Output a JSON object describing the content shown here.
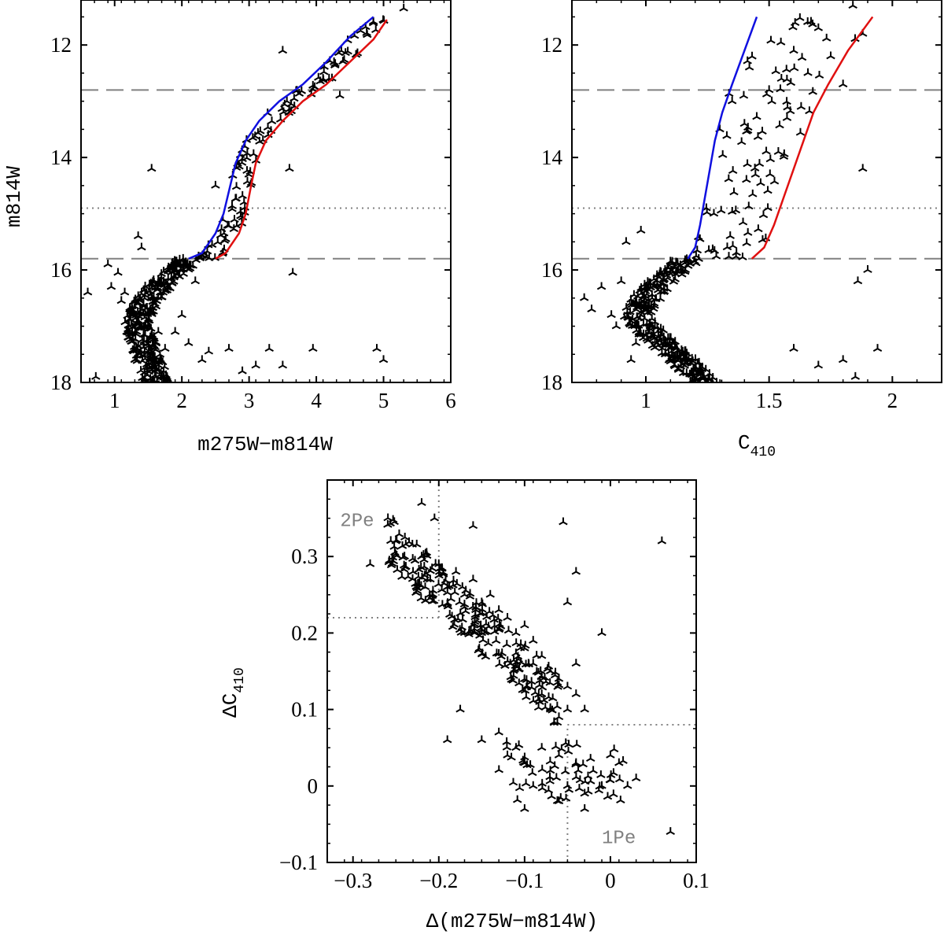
{
  "chart_data": [
    {
      "id": "panel-a",
      "type": "scatter",
      "xlabel": "m275W−m814W",
      "ylabel": "m814W",
      "xlim": [
        0.5,
        6
      ],
      "ylim": [
        18,
        11.2
      ],
      "y_inverted": true,
      "x_ticks": [
        1,
        2,
        3,
        4,
        5,
        6
      ],
      "x_tick_labels": [
        "1",
        "2",
        "3",
        "4",
        "5",
        "6"
      ],
      "y_ticks": [
        12,
        14,
        16,
        18
      ],
      "y_tick_labels": [
        "12",
        "14",
        "16",
        "18"
      ],
      "hlines": [
        {
          "y": 12.8,
          "style": "dashed"
        },
        {
          "y": 14.9,
          "style": "dotted"
        },
        {
          "y": 15.8,
          "style": "dashed"
        }
      ],
      "series": [
        {
          "name": "blue fiducial",
          "color": "#1010e0",
          "style": "line",
          "points": [
            [
              2.1,
              15.8
            ],
            [
              2.3,
              15.7
            ],
            [
              2.5,
              15.35
            ],
            [
              2.62,
              15.0
            ],
            [
              2.72,
              14.5
            ],
            [
              2.8,
              14.1
            ],
            [
              2.95,
              13.7
            ],
            [
              3.15,
              13.35
            ],
            [
              3.45,
              13.0
            ],
            [
              3.8,
              12.7
            ],
            [
              4.15,
              12.3
            ],
            [
              4.5,
              11.85
            ],
            [
              4.85,
              11.5
            ]
          ]
        },
        {
          "name": "red fiducial",
          "color": "#e01010",
          "style": "line",
          "points": [
            [
              2.5,
              15.8
            ],
            [
              2.65,
              15.7
            ],
            [
              2.85,
              15.35
            ],
            [
              2.95,
              15.0
            ],
            [
              3.03,
              14.5
            ],
            [
              3.1,
              14.1
            ],
            [
              3.25,
              13.7
            ],
            [
              3.5,
              13.35
            ],
            [
              3.8,
              13.0
            ],
            [
              4.15,
              12.7
            ],
            [
              4.5,
              12.3
            ],
            [
              4.85,
              11.9
            ],
            [
              5.05,
              11.55
            ]
          ]
        },
        {
          "name": "stars",
          "color": "#000000",
          "style": "scatter",
          "points": [
            [
              0.6,
              16.4
            ],
            [
              0.63,
              18.0
            ],
            [
              0.72,
              17.9
            ],
            [
              0.9,
              15.9
            ],
            [
              0.95,
              16.3
            ],
            [
              1.05,
              16.05
            ],
            [
              1.1,
              16.55
            ],
            [
              1.15,
              16.4
            ],
            [
              1.2,
              17.2
            ],
            [
              1.25,
              16.8
            ],
            [
              1.3,
              17.6
            ],
            [
              1.35,
              15.4
            ],
            [
              1.4,
              15.6
            ],
            [
              1.45,
              17.0
            ],
            [
              1.5,
              16.9
            ],
            [
              1.55,
              14.2
            ],
            [
              1.6,
              16.6
            ],
            [
              1.65,
              17.1
            ],
            [
              1.75,
              17.4
            ],
            [
              1.9,
              17.1
            ],
            [
              2.0,
              16.8
            ],
            [
              2.1,
              17.3
            ],
            [
              2.2,
              16.2
            ],
            [
              2.3,
              17.6
            ],
            [
              2.4,
              17.45
            ],
            [
              2.5,
              14.5
            ],
            [
              2.7,
              17.4
            ],
            [
              2.9,
              17.8
            ],
            [
              3.1,
              17.7
            ],
            [
              3.3,
              17.4
            ],
            [
              3.5,
              17.7
            ],
            [
              3.5,
              12.1
            ],
            [
              3.6,
              14.2
            ],
            [
              3.65,
              16.05
            ],
            [
              3.95,
              17.4
            ],
            [
              4.1,
              12.6
            ],
            [
              4.35,
              12.9
            ],
            [
              4.9,
              17.4
            ],
            [
              5.0,
              17.6
            ],
            [
              5.3,
              11.35
            ]
          ]
        }
      ]
    },
    {
      "id": "panel-b",
      "type": "scatter",
      "xlabel": "C",
      "xlabel_sub": "410",
      "ylabel": "",
      "xlim": [
        0.7,
        2.2
      ],
      "ylim": [
        18,
        11.2
      ],
      "y_inverted": true,
      "x_ticks": [
        1,
        1.5,
        2
      ],
      "x_tick_labels": [
        "1",
        "1.5",
        "2"
      ],
      "y_ticks": [
        12,
        14,
        16,
        18
      ],
      "y_tick_labels": [
        "12",
        "14",
        "16",
        "18"
      ],
      "hlines": [
        {
          "y": 12.8,
          "style": "dashed"
        },
        {
          "y": 14.9,
          "style": "dotted"
        },
        {
          "y": 15.8,
          "style": "dashed"
        }
      ],
      "series": [
        {
          "name": "blue fiducial",
          "color": "#1010e0",
          "style": "line",
          "points": [
            [
              1.17,
              15.8
            ],
            [
              1.2,
              15.6
            ],
            [
              1.22,
              15.2
            ],
            [
              1.24,
              14.7
            ],
            [
              1.26,
              14.2
            ],
            [
              1.28,
              13.7
            ],
            [
              1.31,
              13.2
            ],
            [
              1.35,
              12.7
            ],
            [
              1.4,
              12.1
            ],
            [
              1.45,
              11.5
            ]
          ]
        },
        {
          "name": "red fiducial",
          "color": "#e01010",
          "style": "line",
          "points": [
            [
              1.43,
              15.8
            ],
            [
              1.48,
              15.6
            ],
            [
              1.52,
              15.2
            ],
            [
              1.56,
              14.7
            ],
            [
              1.6,
              14.2
            ],
            [
              1.64,
              13.7
            ],
            [
              1.68,
              13.2
            ],
            [
              1.74,
              12.7
            ],
            [
              1.82,
              12.1
            ],
            [
              1.92,
              11.5
            ]
          ]
        },
        {
          "name": "stars",
          "color": "#000000",
          "style": "scatter",
          "points": [
            [
              0.75,
              16.5
            ],
            [
              0.78,
              16.7
            ],
            [
              0.82,
              16.3
            ],
            [
              0.86,
              16.8
            ],
            [
              0.88,
              17.0
            ],
            [
              0.9,
              16.2
            ],
            [
              0.92,
              15.5
            ],
            [
              0.94,
              17.6
            ],
            [
              0.96,
              17.3
            ],
            [
              0.98,
              15.3
            ],
            [
              1.3,
              13.5
            ],
            [
              1.35,
              13.0
            ],
            [
              1.4,
              13.4
            ],
            [
              1.42,
              12.4
            ],
            [
              1.5,
              12.8
            ],
            [
              1.55,
              12.6
            ],
            [
              1.6,
              12.1
            ],
            [
              1.63,
              13.1
            ],
            [
              1.7,
              11.7
            ],
            [
              1.75,
              12.2
            ],
            [
              1.8,
              12.7
            ],
            [
              1.84,
              11.3
            ],
            [
              1.88,
              11.8
            ],
            [
              1.88,
              14.2
            ],
            [
              1.86,
              16.2
            ],
            [
              1.9,
              16.0
            ],
            [
              1.94,
              17.4
            ],
            [
              1.6,
              17.4
            ],
            [
              1.7,
              17.7
            ],
            [
              1.8,
              17.6
            ],
            [
              1.85,
              17.9
            ]
          ]
        }
      ]
    },
    {
      "id": "panel-c",
      "type": "scatter",
      "xlabel": "Δ(m275W−m814W)",
      "ylabel": "ΔC",
      "ylabel_sub": "410",
      "xlim": [
        -0.33,
        0.1
      ],
      "ylim": [
        -0.1,
        0.4
      ],
      "x_ticks": [
        -0.3,
        -0.2,
        -0.1,
        0,
        0.1
      ],
      "x_tick_labels": [
        "−0.3",
        "−0.2",
        "−0.1",
        "0",
        "0.1"
      ],
      "y_ticks": [
        -0.1,
        0,
        0.1,
        0.2,
        0.3
      ],
      "y_tick_labels": [
        "−0.1",
        "0",
        "0.1",
        "0.2",
        "0.3"
      ],
      "region_lines": [
        {
          "from": [
            -0.2,
            0.22
          ],
          "to": [
            -0.2,
            0.4
          ],
          "style": "dotted"
        },
        {
          "from": [
            -0.33,
            0.22
          ],
          "to": [
            -0.2,
            0.22
          ],
          "style": "dotted"
        },
        {
          "from": [
            -0.05,
            -0.1
          ],
          "to": [
            -0.05,
            0.08
          ],
          "style": "dotted"
        },
        {
          "from": [
            -0.05,
            0.08
          ],
          "to": [
            0.1,
            0.08
          ],
          "style": "dotted"
        }
      ],
      "annotations": [
        {
          "text": "2Pe",
          "x": -0.315,
          "y": 0.34
        },
        {
          "text": "1Pe",
          "x": -0.01,
          "y": -0.075
        }
      ],
      "series": [
        {
          "name": "stars",
          "color": "#000000",
          "style": "scatter",
          "points": [
            [
              -0.22,
              0.37
            ],
            [
              -0.205,
              0.35
            ],
            [
              -0.16,
              0.34
            ],
            [
              -0.055,
              0.345
            ],
            [
              0.06,
              0.32
            ],
            [
              -0.28,
              0.29
            ],
            [
              -0.25,
              0.32
            ],
            [
              -0.24,
              0.3
            ],
            [
              -0.23,
              0.28
            ],
            [
              -0.22,
              0.3
            ],
            [
              -0.21,
              0.27
            ],
            [
              -0.2,
              0.29
            ],
            [
              -0.19,
              0.26
            ],
            [
              -0.18,
              0.28
            ],
            [
              -0.17,
              0.25
            ],
            [
              -0.16,
              0.27
            ],
            [
              -0.15,
              0.24
            ],
            [
              -0.14,
              0.25
            ],
            [
              -0.13,
              0.23
            ],
            [
              -0.12,
              0.22
            ],
            [
              -0.11,
              0.2
            ],
            [
              -0.1,
              0.21
            ],
            [
              -0.09,
              0.19
            ],
            [
              -0.1,
              0.18
            ],
            [
              -0.09,
              0.16
            ],
            [
              -0.08,
              0.17
            ],
            [
              -0.07,
              0.15
            ],
            [
              -0.06,
              0.14
            ],
            [
              -0.05,
              0.13
            ],
            [
              -0.04,
              0.12
            ],
            [
              -0.03,
              0.1
            ],
            [
              -0.08,
              0.12
            ],
            [
              -0.07,
              0.1
            ],
            [
              -0.06,
              0.09
            ],
            [
              -0.05,
              0.1
            ],
            [
              -0.04,
              0.16
            ],
            [
              -0.04,
              0.28
            ],
            [
              -0.05,
              0.24
            ],
            [
              -0.01,
              0.2
            ],
            [
              -0.15,
              0.2
            ],
            [
              -0.17,
              0.2
            ],
            [
              -0.19,
              0.06
            ],
            [
              -0.175,
              0.1
            ],
            [
              -0.15,
              0.06
            ],
            [
              -0.13,
              0.07
            ],
            [
              -0.12,
              0.04
            ],
            [
              -0.11,
              0.05
            ],
            [
              -0.1,
              0.03
            ],
            [
              -0.09,
              0.0
            ],
            [
              -0.08,
              0.05
            ],
            [
              -0.07,
              0.02
            ],
            [
              -0.06,
              0.04
            ],
            [
              -0.05,
              0.0
            ],
            [
              -0.04,
              0.03
            ],
            [
              -0.03,
              -0.01
            ],
            [
              -0.02,
              0.02
            ],
            [
              -0.01,
              0.0
            ],
            [
              0.0,
              0.04
            ],
            [
              0.01,
              0.03
            ],
            [
              0.02,
              0.0
            ],
            [
              0.03,
              0.01
            ],
            [
              -0.06,
              -0.02
            ],
            [
              -0.1,
              -0.03
            ],
            [
              -0.03,
              -0.03
            ],
            [
              0.07,
              -0.06
            ]
          ]
        }
      ]
    }
  ]
}
